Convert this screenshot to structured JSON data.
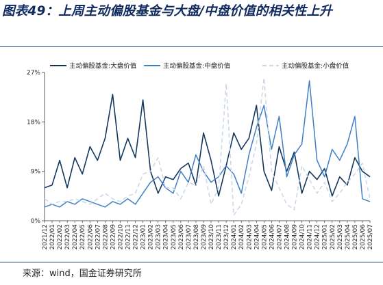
{
  "title": "图表49：上周主动偏股基金与大盘/中盘价值的相关性上升",
  "source": "来源：wind，国金证券研究所",
  "chart_data": {
    "type": "line",
    "title": "图表49：上周主动偏股基金与大盘/中盘价值的相关性上升",
    "xlabel": "",
    "ylabel": "",
    "ylim": [
      0,
      27
    ],
    "yticks": [
      "0%",
      "9%",
      "18%",
      "27%"
    ],
    "grid": false,
    "legend_position": "top",
    "categories": [
      "2021/12",
      "2022/01",
      "2022/02",
      "2022/03",
      "2022/04",
      "2022/05",
      "2022/06",
      "2022/07",
      "2022/08",
      "2022/09",
      "2022/10",
      "2022/11",
      "2022/12",
      "2023/01",
      "2023/02",
      "2023/03",
      "2023/04",
      "2023/05",
      "2023/06",
      "2023/07",
      "2023/08",
      "2023/09",
      "2023/10",
      "2023/11",
      "2023/12",
      "2024/01",
      "2024/02",
      "2024/03",
      "2024/04",
      "2024/05",
      "2024/06",
      "2024/07",
      "2024/08",
      "2024/09",
      "2024/10",
      "2024/11",
      "2024/12",
      "2025/01",
      "2025/02",
      "2025/03",
      "2025/04",
      "2025/05",
      "2025/06",
      "2025/07"
    ],
    "series": [
      {
        "name": "主动偏股基金:大盘价值",
        "color": "#12375e",
        "dash": "none",
        "values": [
          6.0,
          6.5,
          11.0,
          6.0,
          11.5,
          8.5,
          13.5,
          11.0,
          15.0,
          23.0,
          11.0,
          15.0,
          11.5,
          22.0,
          9.0,
          5.0,
          8.0,
          7.5,
          9.5,
          10.5,
          6.5,
          16.0,
          11.0,
          4.5,
          10.0,
          16.0,
          13.0,
          15.0,
          21.0,
          9.0,
          5.5,
          13.5,
          9.0,
          12.5,
          5.0,
          9.0,
          7.5,
          9.5,
          4.5,
          8.0,
          6.5,
          11.5,
          9.0,
          8.0
        ]
      },
      {
        "name": "主动偏股基金:中盘价值",
        "color": "#3f7fc6",
        "dash": "none",
        "values": [
          2.5,
          3.0,
          2.5,
          3.5,
          3.0,
          4.0,
          3.5,
          3.0,
          2.5,
          3.5,
          3.0,
          4.0,
          3.0,
          5.0,
          7.0,
          8.0,
          6.0,
          5.0,
          9.0,
          7.0,
          12.0,
          9.0,
          7.0,
          8.0,
          10.0,
          8.5,
          5.0,
          12.0,
          17.0,
          21.0,
          13.0,
          19.0,
          8.0,
          12.0,
          14.0,
          25.5,
          11.0,
          8.0,
          13.0,
          11.0,
          14.0,
          19.0,
          4.0,
          3.5
        ]
      },
      {
        "name": "主动偏股基金:小盘价值",
        "color": "#c9d6e8",
        "dash": "6,4",
        "values": [
          4.0,
          3.0,
          3.5,
          3.5,
          4.0,
          3.5,
          3.0,
          4.0,
          5.0,
          4.0,
          3.5,
          4.5,
          5.0,
          8.5,
          9.0,
          11.5,
          6.0,
          6.0,
          4.0,
          7.0,
          6.5,
          10.0,
          3.0,
          6.0,
          25.0,
          1.0,
          3.0,
          8.0,
          14.0,
          26.0,
          9.0,
          6.0,
          3.0,
          2.0,
          10.0,
          7.5,
          5.0,
          7.0,
          3.5,
          5.0,
          7.0,
          8.5,
          10.5,
          4.0
        ]
      }
    ]
  }
}
